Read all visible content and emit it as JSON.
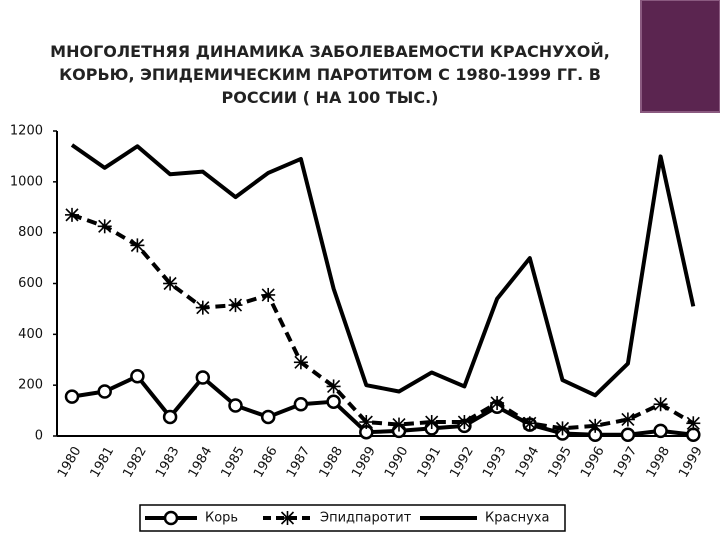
{
  "chart_data": {
    "type": "line",
    "title": [
      "МНОГОЛЕТНЯЯ ДИНАМИКА ЗАБОЛЕВАЕМОСТИ  КРАСНУХОЙ,",
      "КОРЬЮ, ЭПИДЕМИЧЕСКИМ ПАРОТИТОМ С 1980-1999 ГГ. В",
      "РОССИИ ( НА 100 ТЫС.)"
    ],
    "categories": [
      "1980",
      "1981",
      "1982",
      "1983",
      "1984",
      "1985",
      "1986",
      "1987",
      "1988",
      "1989",
      "1990",
      "1991",
      "1992",
      "1993",
      "1994",
      "1995",
      "1996",
      "1997",
      "1998",
      "1999"
    ],
    "series": [
      {
        "name": "Корь",
        "color": "#000000",
        "style": "solid",
        "marker": "circle",
        "values": [
          155,
          175,
          235,
          75,
          230,
          120,
          75,
          125,
          135,
          15,
          20,
          30,
          40,
          115,
          45,
          10,
          5,
          5,
          20,
          5
        ]
      },
      {
        "name": "Эпидпаротит",
        "color": "#000000",
        "style": "dashed",
        "marker": "asterisk",
        "values": [
          870,
          825,
          750,
          600,
          505,
          515,
          555,
          290,
          195,
          55,
          45,
          55,
          55,
          130,
          50,
          30,
          40,
          65,
          125,
          50
        ]
      },
      {
        "name": "Краснуха",
        "color": "#000000",
        "style": "solid",
        "marker": "none",
        "values": [
          1145,
          1055,
          1140,
          1030,
          1040,
          940,
          1035,
          1090,
          580,
          200,
          175,
          250,
          195,
          540,
          700,
          220,
          160,
          285,
          1100,
          510
        ]
      }
    ],
    "ylim": [
      0,
      1200
    ],
    "yticks": [
      0,
      200,
      400,
      600,
      800,
      1000,
      1200
    ],
    "grid": false,
    "legend": "bottom"
  }
}
